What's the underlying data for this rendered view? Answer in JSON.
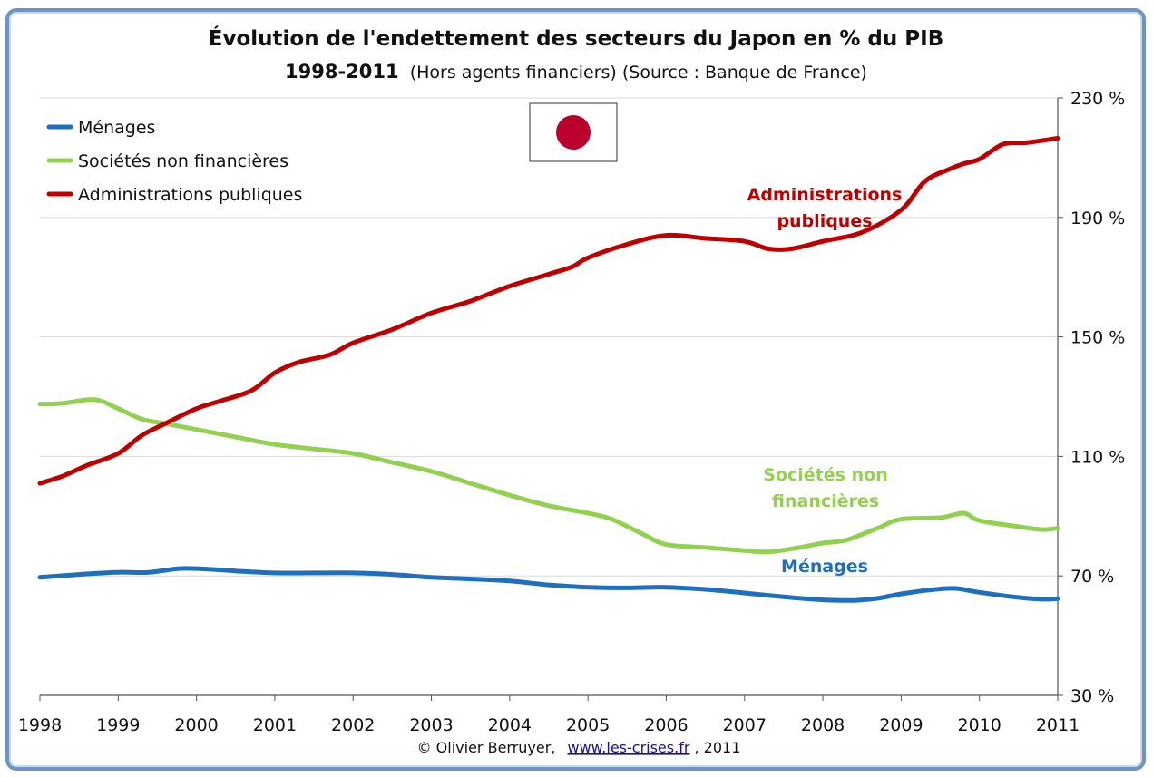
{
  "chart_data": {
    "type": "line",
    "title": "Évolution de l'endettement des secteurs du Japon en % du PIB",
    "subtitle_years": "1998-2011",
    "subtitle_rest": "(Hors agents financiers) (Source : Banque de France)",
    "xlabel": "",
    "ylabel": "",
    "xlim": [
      1998,
      2011
    ],
    "ylim": [
      30,
      230
    ],
    "x_ticks": [
      "1998",
      "1999",
      "2000",
      "2001",
      "2002",
      "2003",
      "2004",
      "2005",
      "2006",
      "2007",
      "2008",
      "2009",
      "2010",
      "2011"
    ],
    "y_ticks": [
      {
        "value": 230,
        "label": "230 %"
      },
      {
        "value": 190,
        "label": "190 %"
      },
      {
        "value": 150,
        "label": "150 %"
      },
      {
        "value": 110,
        "label": "110 %"
      },
      {
        "value": 70,
        "label": "70 %"
      },
      {
        "value": 30,
        "label": "30 %"
      }
    ],
    "grid": true,
    "legend_position": "top-left",
    "series": [
      {
        "name": "Ménages",
        "color": "#1f6fbf",
        "annotation": "Ménages",
        "x": [
          1998.0,
          1998.5,
          1999.0,
          1999.4,
          1999.8,
          2000.2,
          2000.6,
          2001.0,
          2001.5,
          2002.0,
          2002.5,
          2003.0,
          2003.5,
          2004.0,
          2004.5,
          2005.0,
          2005.5,
          2006.0,
          2006.5,
          2007.0,
          2007.5,
          2008.0,
          2008.4,
          2008.7,
          2009.0,
          2009.4,
          2009.7,
          2010.0,
          2010.5,
          2010.8,
          2011.0
        ],
        "values": [
          69.5,
          70.5,
          71.2,
          71.2,
          72.5,
          72.2,
          71.5,
          71.0,
          71.0,
          71.0,
          70.5,
          69.5,
          69.0,
          68.3,
          67.0,
          66.2,
          66.0,
          66.2,
          65.5,
          64.3,
          63.0,
          62.0,
          61.8,
          62.5,
          64.0,
          65.4,
          65.8,
          64.5,
          62.8,
          62.2,
          62.4
        ]
      },
      {
        "name": "Sociétés non financières",
        "color": "#92d050",
        "annotation": "Sociétés non financières",
        "x": [
          1998.0,
          1998.3,
          1998.7,
          1999.0,
          1999.3,
          1999.6,
          2000.0,
          2000.5,
          2001.0,
          2001.5,
          2002.0,
          2002.5,
          2003.0,
          2003.5,
          2004.0,
          2004.5,
          2005.0,
          2005.3,
          2005.7,
          2006.0,
          2006.5,
          2007.0,
          2007.3,
          2007.7,
          2008.0,
          2008.3,
          2008.7,
          2009.0,
          2009.5,
          2009.8,
          2010.0,
          2010.5,
          2010.8,
          2011.0
        ],
        "values": [
          127.5,
          127.8,
          129.0,
          126.0,
          122.5,
          121.0,
          119.0,
          116.5,
          114.0,
          112.5,
          111.0,
          108.0,
          105.0,
          101.0,
          97.0,
          93.5,
          91.0,
          89.0,
          84.0,
          80.5,
          79.5,
          78.5,
          78.0,
          79.5,
          81.0,
          82.0,
          86.0,
          89.0,
          89.5,
          91.0,
          88.5,
          86.5,
          85.5,
          86.0
        ]
      },
      {
        "name": "Administrations publiques",
        "color": "#c00000",
        "annotation": "Administrations publiques",
        "x": [
          1998.0,
          1998.3,
          1998.6,
          1999.0,
          1999.3,
          1999.6,
          2000.0,
          2000.3,
          2000.7,
          2001.0,
          2001.3,
          2001.7,
          2002.0,
          2002.5,
          2003.0,
          2003.5,
          2004.0,
          2004.5,
          2004.8,
          2005.0,
          2005.5,
          2006.0,
          2006.5,
          2007.0,
          2007.3,
          2007.6,
          2008.0,
          2008.5,
          2009.0,
          2009.3,
          2009.6,
          2009.8,
          2010.0,
          2010.3,
          2010.6,
          2011.0
        ],
        "values": [
          101.0,
          103.5,
          107.0,
          111.0,
          117.0,
          121.0,
          126.0,
          128.5,
          132.0,
          138.0,
          141.5,
          144.0,
          148.0,
          152.5,
          158.0,
          162.0,
          167.0,
          171.0,
          173.5,
          176.5,
          181.0,
          184.0,
          183.0,
          182.0,
          179.5,
          179.5,
          182.0,
          185.0,
          192.5,
          202.0,
          206.0,
          208.0,
          209.5,
          214.5,
          215.0,
          216.5
        ]
      }
    ]
  },
  "flag_name": "Japan flag",
  "footer": {
    "prefix": "© Olivier Berruyer,",
    "link": "www.les-crises.fr",
    "suffix": ",  2011"
  }
}
